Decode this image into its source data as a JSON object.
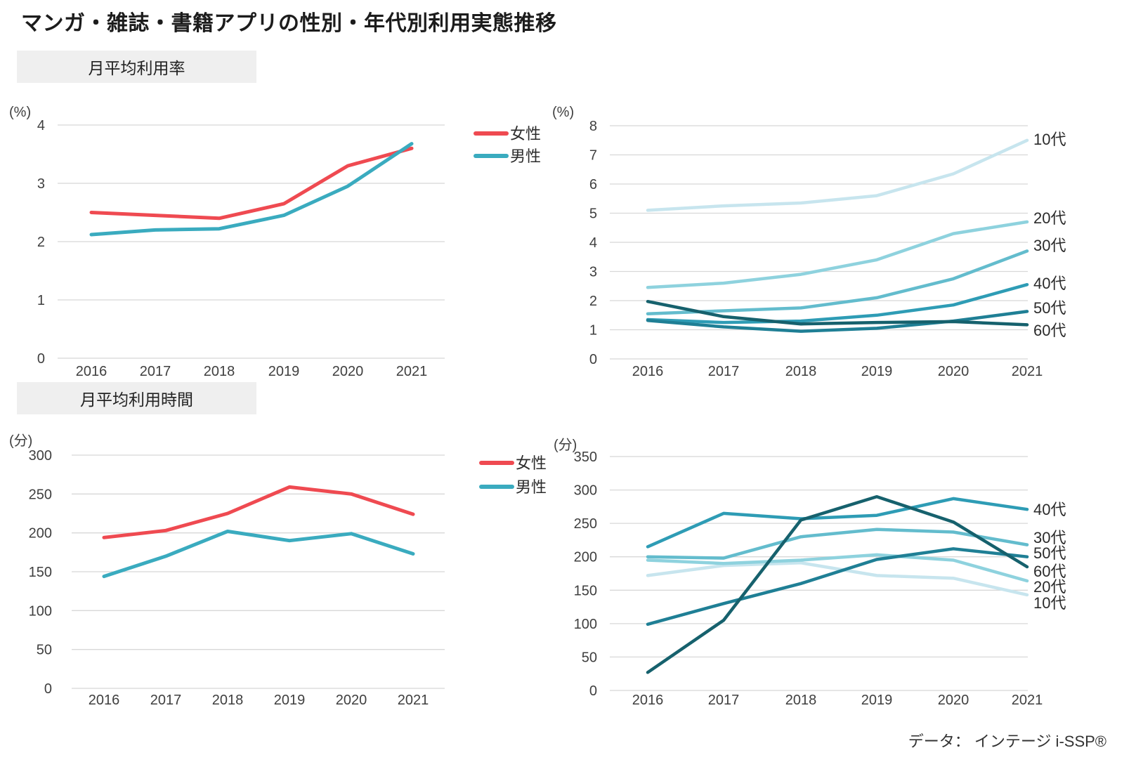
{
  "page": {
    "title": "マンガ・雑誌・書籍アプリの性別・年代別利用実態推移",
    "footer_source": "データ：  インテージ i-SSP®"
  },
  "sections": [
    {
      "label": "月平均利用率"
    },
    {
      "label": "月平均利用時間"
    }
  ],
  "chart_data": [
    {
      "id": "rate-gender",
      "type": "line",
      "title": "月平均利用率",
      "unit": "(%)",
      "categories": [
        "2016",
        "2017",
        "2018",
        "2019",
        "2020",
        "2021"
      ],
      "ylim": [
        0,
        4
      ],
      "yticks": [
        0,
        1,
        2,
        3,
        4
      ],
      "grid": "horizontal",
      "legend_position": "right-top",
      "series": [
        {
          "name": "女性",
          "color": "#ef4a51",
          "values": [
            2.5,
            2.45,
            2.4,
            2.65,
            3.3,
            3.6
          ]
        },
        {
          "name": "男性",
          "color": "#3aabbf",
          "values": [
            2.12,
            2.2,
            2.22,
            2.45,
            2.95,
            3.68
          ]
        }
      ]
    },
    {
      "id": "rate-age",
      "type": "line",
      "title": "月平均利用率",
      "unit": "(%)",
      "categories": [
        "2016",
        "2017",
        "2018",
        "2019",
        "2020",
        "2021"
      ],
      "ylim": [
        0,
        8
      ],
      "yticks": [
        0,
        1,
        2,
        3,
        4,
        5,
        6,
        7,
        8
      ],
      "grid": "horizontal",
      "legend_position": "line-end-labels",
      "series": [
        {
          "name": "10代",
          "color": "#c7e5ee",
          "values": [
            5.1,
            5.25,
            5.35,
            5.6,
            6.35,
            7.5
          ]
        },
        {
          "name": "20代",
          "color": "#8ed2de",
          "values": [
            2.45,
            2.6,
            2.9,
            3.4,
            4.3,
            4.7
          ]
        },
        {
          "name": "30代",
          "color": "#63bccd",
          "values": [
            1.55,
            1.65,
            1.75,
            2.1,
            2.75,
            3.7
          ]
        },
        {
          "name": "40代",
          "color": "#2e9cb5",
          "values": [
            1.35,
            1.25,
            1.3,
            1.5,
            1.85,
            2.55
          ]
        },
        {
          "name": "50代",
          "color": "#1f7f95",
          "values": [
            1.32,
            1.1,
            0.95,
            1.05,
            1.3,
            1.63
          ]
        },
        {
          "name": "60代",
          "color": "#16616d",
          "values": [
            1.97,
            1.45,
            1.2,
            1.25,
            1.28,
            1.17
          ]
        }
      ]
    },
    {
      "id": "time-gender",
      "type": "line",
      "title": "月平均利用時間",
      "unit": "(分)",
      "categories": [
        "2016",
        "2017",
        "2018",
        "2019",
        "2020",
        "2021"
      ],
      "ylim": [
        0,
        300
      ],
      "yticks": [
        0,
        50,
        100,
        150,
        200,
        250,
        300
      ],
      "grid": "horizontal",
      "legend_position": "right-top",
      "series": [
        {
          "name": "女性",
          "color": "#ef4a51",
          "values": [
            194,
            203,
            225,
            259,
            250,
            224
          ]
        },
        {
          "name": "男性",
          "color": "#3aabbf",
          "values": [
            144,
            170,
            202,
            190,
            199,
            173
          ]
        }
      ]
    },
    {
      "id": "time-age",
      "type": "line",
      "title": "月平均利用時間",
      "unit": "(分)",
      "categories": [
        "2016",
        "2017",
        "2018",
        "2019",
        "2020",
        "2021"
      ],
      "ylim": [
        0,
        350
      ],
      "yticks": [
        0,
        50,
        100,
        150,
        200,
        250,
        300,
        350
      ],
      "grid": "horizontal",
      "legend_position": "line-end-labels",
      "series": [
        {
          "name": "10代",
          "color": "#c7e5ee",
          "values": [
            172,
            187,
            191,
            172,
            168,
            143
          ]
        },
        {
          "name": "20代",
          "color": "#8ed2de",
          "values": [
            195,
            190,
            195,
            203,
            195,
            164
          ]
        },
        {
          "name": "30代",
          "color": "#63bccd",
          "values": [
            200,
            198,
            230,
            241,
            237,
            218
          ]
        },
        {
          "name": "40代",
          "color": "#2e9cb5",
          "values": [
            215,
            265,
            257,
            262,
            287,
            271
          ]
        },
        {
          "name": "50代",
          "color": "#1f7f95",
          "values": [
            99,
            130,
            160,
            196,
            212,
            200
          ]
        },
        {
          "name": "60代",
          "color": "#16616d",
          "values": [
            27,
            105,
            255,
            290,
            252,
            185
          ]
        }
      ]
    }
  ]
}
